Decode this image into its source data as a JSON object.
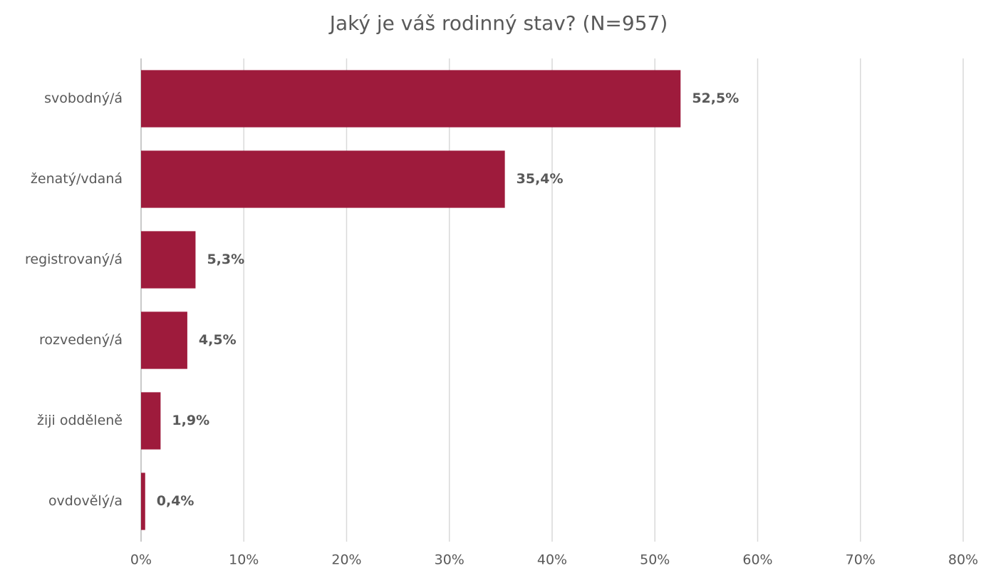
{
  "chart_data": {
    "type": "bar",
    "orientation": "horizontal",
    "title": "Jaký je váš rodinný stav? (N=957)",
    "categories": [
      "svobodný/á",
      "ženatý/vdaná",
      "registrovaný/á",
      "rozvedený/á",
      "žiji odděleně",
      "ovdovělý/a"
    ],
    "values": [
      52.5,
      35.4,
      5.3,
      4.5,
      1.9,
      0.4
    ],
    "value_labels": [
      "52,5%",
      "35,4%",
      "5,3%",
      "4,5%",
      "1,9%",
      "0,4%"
    ],
    "color": "#9e1b3c",
    "xlim": [
      0,
      80
    ],
    "xticks": [
      {
        "value": 0,
        "label": "0%"
      },
      {
        "value": 10,
        "label": "10%"
      },
      {
        "value": 20,
        "label": "20%"
      },
      {
        "value": 30,
        "label": "30%"
      },
      {
        "value": 40,
        "label": "40%"
      },
      {
        "value": 50,
        "label": "50%"
      },
      {
        "value": 60,
        "label": "60%"
      },
      {
        "value": 70,
        "label": "70%"
      },
      {
        "value": 80,
        "label": "80%"
      }
    ],
    "grid": true
  }
}
